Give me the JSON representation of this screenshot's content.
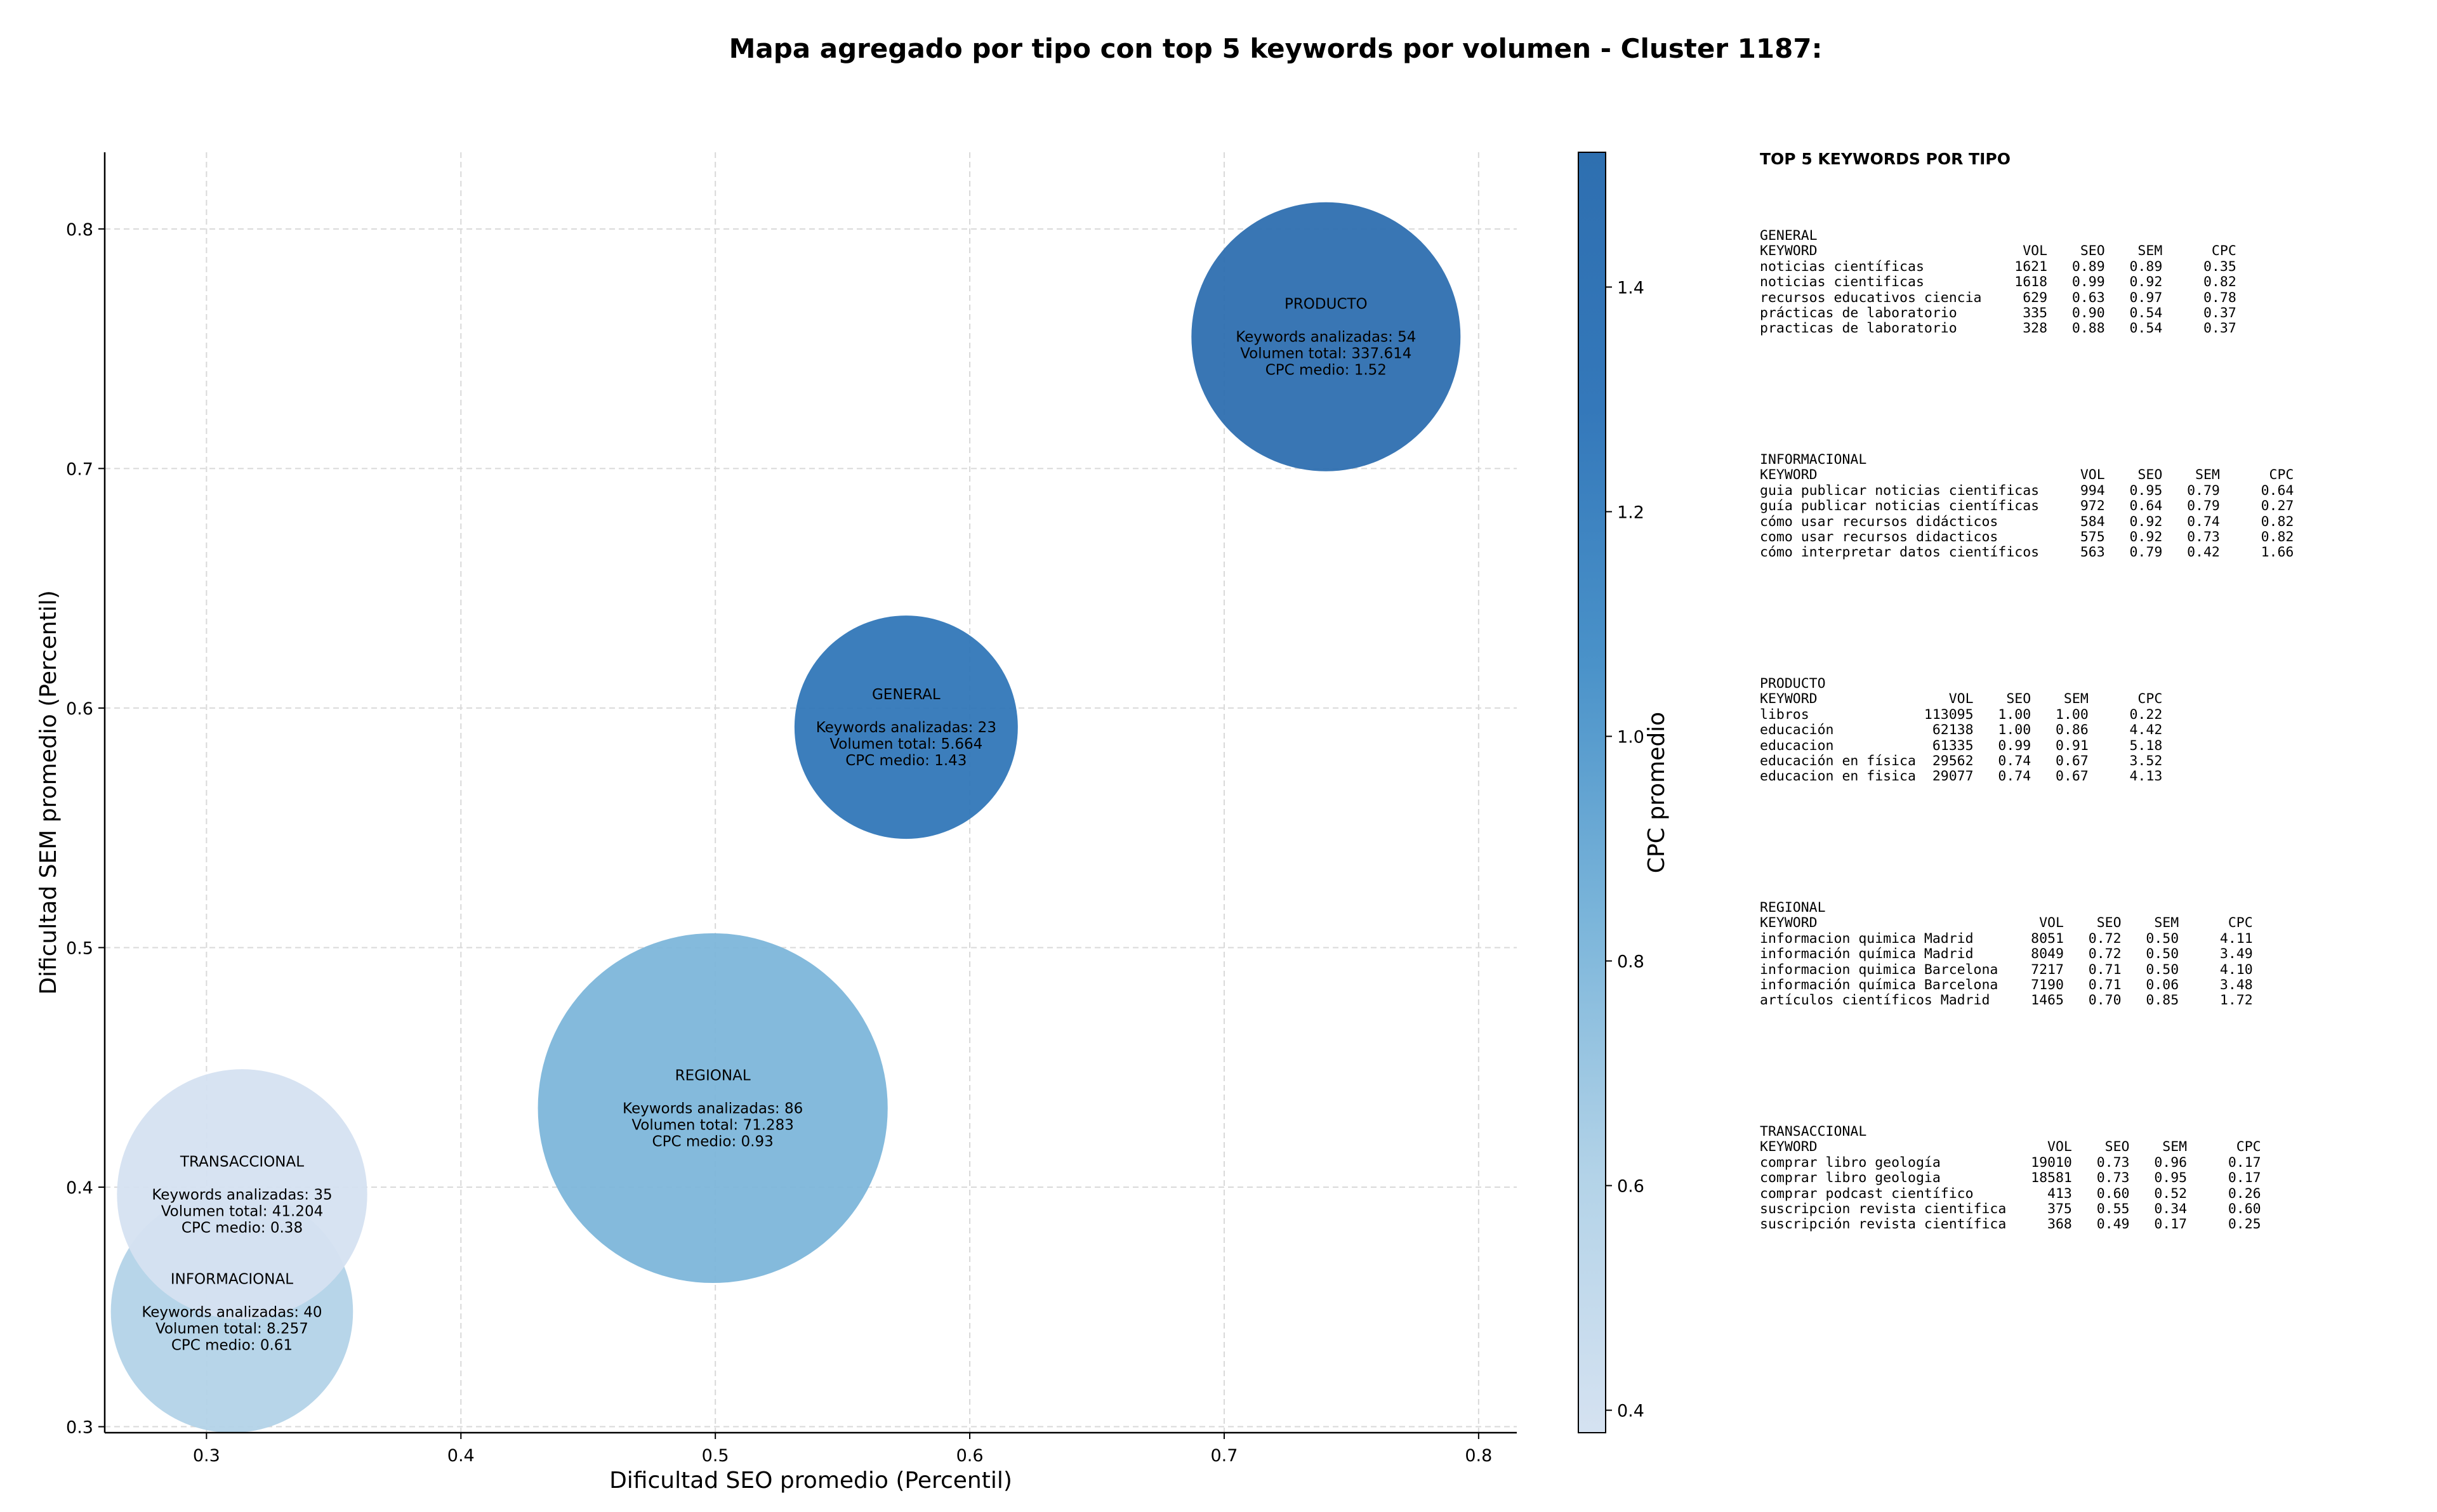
{
  "title": "Mapa agregado por tipo con top 5 keywords por volumen - Cluster 1187:",
  "chart_data": {
    "type": "scatter",
    "subtype": "bubble",
    "xlabel": "Dificultad SEO promedio (Percentil)",
    "ylabel": "Dificultad SEM promedio (Percentil)",
    "xlim": [
      0.26,
      0.815
    ],
    "ylim": [
      0.2975,
      0.832
    ],
    "xticks": [
      "0.3",
      "0.4",
      "0.5",
      "0.6",
      "0.7",
      "0.8"
    ],
    "yticks": [
      "0.3",
      "0.4",
      "0.5",
      "0.6",
      "0.7",
      "0.8"
    ],
    "grid": true,
    "colorbar": {
      "label": "CPC promedio",
      "range": [
        0.38,
        1.52
      ],
      "ticks": [
        "0.4",
        "0.6",
        "0.8",
        "1.0",
        "1.2",
        "1.4"
      ],
      "colors": [
        "#d5e2f1",
        "#b3d3e8",
        "#7bb5da",
        "#4a92c9",
        "#3478ba",
        "#2e6fb0"
      ]
    },
    "points": [
      {
        "name": "PRODUCTO",
        "x": 0.74,
        "y": 0.755,
        "keywords_label": "Keywords analizadas: 54",
        "volume_label": "Volumen total: 337.614",
        "cpc_label": "CPC medio: 1.52",
        "cpc": 1.52,
        "bubble_size": 1.0,
        "color": "#2e6fb0"
      },
      {
        "name": "GENERAL",
        "x": 0.575,
        "y": 0.592,
        "keywords_label": "Keywords analizadas: 23",
        "volume_label": "Volumen total: 5.664",
        "cpc_label": "CPC medio: 1.43",
        "cpc": 1.43,
        "bubble_size": 0.83,
        "color": "#3277b8"
      },
      {
        "name": "REGIONAL",
        "x": 0.499,
        "y": 0.433,
        "keywords_label": "Keywords analizadas: 86",
        "volume_label": "Volumen total: 71.283",
        "cpc_label": "CPC medio: 0.93",
        "cpc": 0.93,
        "bubble_size": 1.3,
        "color": "#7db6da"
      },
      {
        "name": "INFORMACIONAL",
        "x": 0.31,
        "y": 0.348,
        "keywords_label": "Keywords analizadas: 40",
        "volume_label": "Volumen total: 8.257",
        "cpc_label": "CPC medio: 0.61",
        "cpc": 0.61,
        "bubble_size": 0.9,
        "color": "#b3d3e8"
      },
      {
        "name": "TRANSACCIONAL",
        "x": 0.314,
        "y": 0.397,
        "keywords_label": "Keywords analizadas: 35",
        "volume_label": "Volumen total: 41.204",
        "cpc_label": "CPC medio: 0.38",
        "cpc": 0.38,
        "bubble_size": 0.93,
        "color": "#d5e2f1"
      }
    ]
  },
  "top_keywords": {
    "title": "TOP 5 KEYWORDS POR TIPO",
    "sections": [
      {
        "name": "GENERAL",
        "header": "KEYWORD                         VOL    SEO    SEM      CPC",
        "rows": [
          "noticias científicas           1621   0.89   0.89     0.35",
          "noticias cientificas           1618   0.99   0.92     0.82",
          "recursos educativos ciencia     629   0.63   0.97     0.78",
          "prácticas de laboratorio        335   0.90   0.54     0.37",
          "practicas de laboratorio        328   0.88   0.54     0.37"
        ]
      },
      {
        "name": "INFORMACIONAL",
        "header": "KEYWORD                                VOL    SEO    SEM      CPC",
        "rows": [
          "guia publicar noticias cientificas     994   0.95   0.79     0.64",
          "guía publicar noticias científicas     972   0.64   0.79     0.27",
          "cómo usar recursos didácticos          584   0.92   0.74     0.82",
          "como usar recursos didacticos          575   0.92   0.73     0.82",
          "cómo interpretar datos científicos     563   0.79   0.42     1.66"
        ]
      },
      {
        "name": "PRODUCTO",
        "header": "KEYWORD                VOL    SEO    SEM      CPC",
        "rows": [
          "libros              113095   1.00   1.00     0.22",
          "educación            62138   1.00   0.86     4.42",
          "educacion            61335   0.99   0.91     5.18",
          "educación en física  29562   0.74   0.67     3.52",
          "educacion en fisica  29077   0.74   0.67     4.13"
        ]
      },
      {
        "name": "REGIONAL",
        "header": "KEYWORD                           VOL    SEO    SEM      CPC",
        "rows": [
          "informacion quimica Madrid       8051   0.72   0.50     4.11",
          "información química Madrid       8049   0.72   0.50     3.49",
          "informacion quimica Barcelona    7217   0.71   0.50     4.10",
          "información química Barcelona    7190   0.71   0.06     3.48",
          "artículos científicos Madrid     1465   0.70   0.85     1.72"
        ]
      },
      {
        "name": "TRANSACCIONAL",
        "header": "KEYWORD                            VOL    SEO    SEM      CPC",
        "rows": [
          "comprar libro geología           19010   0.73   0.96     0.17",
          "comprar libro geologia           18581   0.73   0.95     0.17",
          "comprar podcast científico         413   0.60   0.52     0.26",
          "suscripcion revista cientifica     375   0.55   0.34     0.60",
          "suscripción revista científica     368   0.49   0.17     0.25"
        ]
      }
    ]
  }
}
